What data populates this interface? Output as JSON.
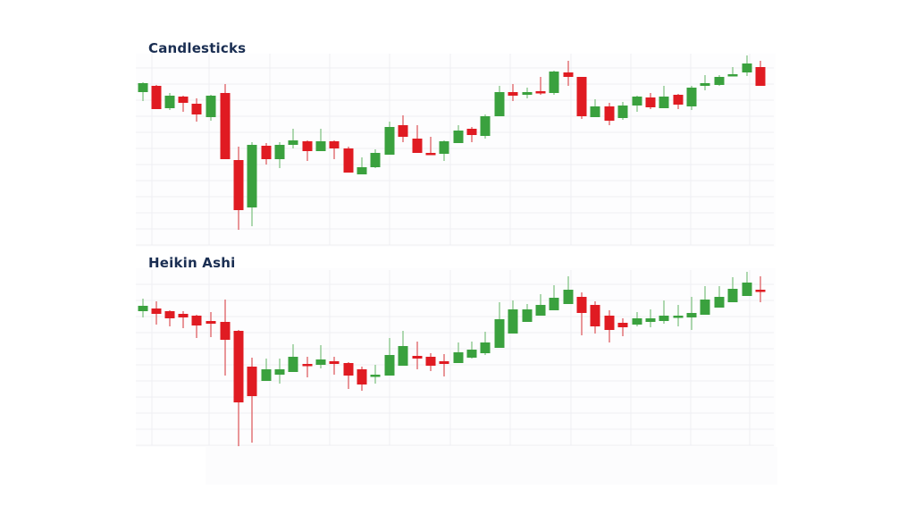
{
  "colors": {
    "up": "#3aa13e",
    "down": "#e01b22",
    "up_wick": "#8cc88e",
    "down_wick": "#e06a6e",
    "grid": "#eeeef3",
    "title": "#1a2e52"
  },
  "chart_data": [
    {
      "type": "candlestick",
      "title": "Candlesticks",
      "xlabel": "",
      "ylabel": "",
      "grid": true,
      "legend": "none",
      "note": "Values are screen y-coordinates in px (smaller = higher price). Each candle: [x_center, wick_top, body_top, body_bottom, wick_bottom, direction].",
      "candles": [
        [
          160,
          92,
          93,
          103,
          113,
          "up"
        ],
        [
          175,
          95,
          96,
          122,
          122,
          "down"
        ],
        [
          190,
          104,
          107,
          121,
          123,
          "up"
        ],
        [
          205,
          107,
          108,
          115,
          125,
          "down"
        ],
        [
          220,
          110,
          116,
          128,
          136,
          "down"
        ],
        [
          236,
          106,
          107,
          131,
          135,
          "up"
        ],
        [
          252,
          94,
          104,
          178,
          178,
          "down"
        ],
        [
          267,
          164,
          179,
          235,
          257,
          "down"
        ],
        [
          282,
          159,
          162,
          232,
          253,
          "up"
        ],
        [
          298,
          160,
          163,
          178,
          184,
          "down"
        ],
        [
          313,
          159,
          162,
          178,
          188,
          "up"
        ],
        [
          328,
          144,
          157,
          162,
          166,
          "up"
        ],
        [
          344,
          157,
          158,
          169,
          180,
          "down"
        ],
        [
          359,
          144,
          158,
          169,
          169,
          "up"
        ],
        [
          374,
          157,
          158,
          166,
          178,
          "down"
        ],
        [
          390,
          164,
          166,
          193,
          193,
          "down"
        ],
        [
          405,
          176,
          187,
          195,
          195,
          "up"
        ],
        [
          420,
          167,
          171,
          187,
          188,
          "up"
        ],
        [
          436,
          136,
          142,
          173,
          173,
          "up"
        ],
        [
          451,
          129,
          140,
          153,
          159,
          "down"
        ],
        [
          467,
          140,
          155,
          171,
          171,
          "down"
        ],
        [
          482,
          153,
          171,
          172,
          173,
          "down"
        ],
        [
          497,
          157,
          158,
          172,
          180,
          "up"
        ],
        [
          513,
          140,
          146,
          160,
          160,
          "up"
        ],
        [
          528,
          142,
          144,
          151,
          159,
          "down"
        ],
        [
          543,
          128,
          130,
          152,
          155,
          "up"
        ],
        [
          559,
          96,
          103,
          130,
          130,
          "up"
        ],
        [
          574,
          94,
          103,
          107,
          113,
          "down"
        ],
        [
          590,
          98,
          103,
          106,
          110,
          "up"
        ],
        [
          605,
          86,
          102,
          104,
          106,
          "down"
        ],
        [
          620,
          79,
          80,
          104,
          106,
          "up"
        ],
        [
          636,
          68,
          81,
          86,
          96,
          "down"
        ],
        [
          651,
          86,
          86,
          130,
          133,
          "down"
        ],
        [
          666,
          111,
          119,
          131,
          131,
          "up"
        ],
        [
          682,
          115,
          119,
          135,
          140,
          "down"
        ],
        [
          697,
          114,
          118,
          132,
          134,
          "up"
        ],
        [
          713,
          107,
          108,
          118,
          125,
          "up"
        ],
        [
          728,
          104,
          109,
          120,
          122,
          "down"
        ],
        [
          743,
          96,
          108,
          121,
          121,
          "up"
        ],
        [
          759,
          105,
          106,
          117,
          122,
          "down"
        ],
        [
          774,
          96,
          98,
          119,
          123,
          "up"
        ],
        [
          789,
          84,
          93,
          96,
          101,
          "up"
        ],
        [
          805,
          84,
          86,
          95,
          96,
          "up"
        ],
        [
          820,
          75,
          83,
          85,
          85,
          "up"
        ],
        [
          836,
          62,
          71,
          81,
          85,
          "up"
        ],
        [
          851,
          68,
          75,
          96,
          96,
          "down"
        ]
      ]
    },
    {
      "type": "candlestick",
      "title": "Heikin Ashi",
      "xlabel": "",
      "ylabel": "",
      "grid": true,
      "legend": "none",
      "note": "Values are screen y-coordinates in px (smaller = higher price). Each candle: [x_center, wick_top, body_top, body_bottom, wick_bottom, direction].",
      "candles": [
        [
          160,
          334,
          342,
          348,
          355,
          "up"
        ],
        [
          175,
          337,
          345,
          351,
          363,
          "down"
        ],
        [
          190,
          347,
          348,
          356,
          365,
          "down"
        ],
        [
          205,
          348,
          351,
          355,
          367,
          "down"
        ],
        [
          220,
          352,
          353,
          364,
          378,
          "down"
        ],
        [
          236,
          349,
          359,
          362,
          377,
          "down"
        ],
        [
          252,
          335,
          360,
          380,
          420,
          "down"
        ],
        [
          267,
          369,
          370,
          450,
          499,
          "down"
        ],
        [
          282,
          400,
          410,
          443,
          495,
          "down"
        ],
        [
          298,
          401,
          413,
          426,
          426,
          "up"
        ],
        [
          313,
          401,
          413,
          419,
          429,
          "up"
        ],
        [
          328,
          385,
          399,
          416,
          416,
          "up"
        ],
        [
          344,
          399,
          407,
          408,
          422,
          "down"
        ],
        [
          359,
          386,
          402,
          408,
          412,
          "up"
        ],
        [
          374,
          399,
          404,
          407,
          419,
          "down"
        ],
        [
          390,
          405,
          406,
          420,
          435,
          "down"
        ],
        [
          405,
          410,
          413,
          430,
          437,
          "down"
        ],
        [
          420,
          408,
          419,
          421,
          429,
          "up"
        ],
        [
          436,
          378,
          397,
          420,
          420,
          "up"
        ],
        [
          451,
          370,
          387,
          409,
          409,
          "up"
        ],
        [
          467,
          382,
          398,
          401,
          413,
          "down"
        ],
        [
          482,
          395,
          399,
          409,
          415,
          "down"
        ],
        [
          497,
          396,
          404,
          407,
          421,
          "down"
        ],
        [
          513,
          383,
          394,
          406,
          406,
          "up"
        ],
        [
          528,
          382,
          391,
          400,
          401,
          "up"
        ],
        [
          543,
          371,
          383,
          395,
          397,
          "up"
        ],
        [
          559,
          338,
          357,
          389,
          389,
          "up"
        ],
        [
          574,
          336,
          346,
          373,
          373,
          "up"
        ],
        [
          590,
          340,
          346,
          360,
          360,
          "up"
        ],
        [
          605,
          329,
          341,
          353,
          353,
          "up"
        ],
        [
          620,
          319,
          333,
          347,
          347,
          "up"
        ],
        [
          636,
          309,
          324,
          340,
          340,
          "up"
        ],
        [
          651,
          327,
          332,
          350,
          375,
          "down"
        ],
        [
          666,
          337,
          341,
          365,
          373,
          "down"
        ],
        [
          682,
          347,
          353,
          369,
          383,
          "down"
        ],
        [
          697,
          356,
          361,
          366,
          376,
          "down"
        ],
        [
          713,
          349,
          356,
          363,
          365,
          "up"
        ],
        [
          728,
          346,
          356,
          360,
          366,
          "up"
        ],
        [
          743,
          336,
          353,
          359,
          362,
          "up"
        ],
        [
          759,
          341,
          353,
          355,
          365,
          "up"
        ],
        [
          774,
          332,
          350,
          355,
          369,
          "up"
        ],
        [
          789,
          320,
          335,
          352,
          352,
          "up"
        ],
        [
          805,
          320,
          332,
          344,
          344,
          "up"
        ],
        [
          820,
          310,
          323,
          338,
          338,
          "up"
        ],
        [
          836,
          304,
          316,
          331,
          331,
          "up"
        ],
        [
          851,
          309,
          324,
          326,
          338,
          "down"
        ]
      ]
    }
  ],
  "panels": [
    {
      "title": "Candlesticks"
    },
    {
      "title": "Heikin Ashi"
    }
  ]
}
